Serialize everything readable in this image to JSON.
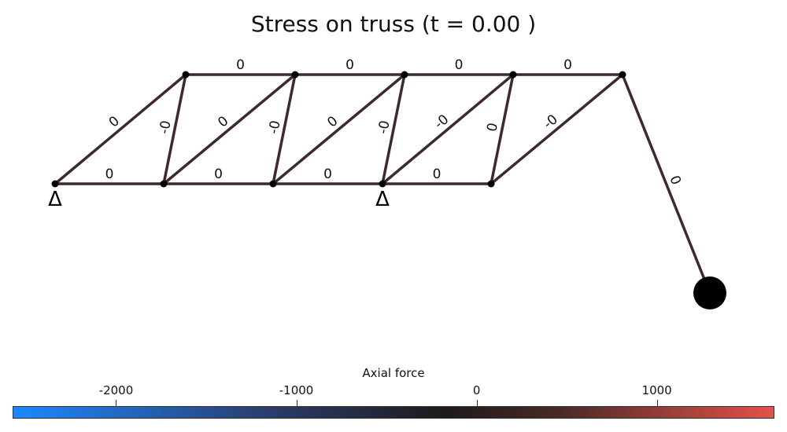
{
  "title": "Stress on truss (t = 0.00 )",
  "members": [
    {
      "label": "0"
    },
    {
      "label": "0"
    },
    {
      "label": "0"
    },
    {
      "label": "0"
    },
    {
      "label": "0"
    },
    {
      "label": "0"
    },
    {
      "label": "0"
    },
    {
      "label": "0"
    },
    {
      "label": "0"
    },
    {
      "label": "-0"
    },
    {
      "label": "0"
    },
    {
      "label": "-0"
    },
    {
      "label": "0"
    },
    {
      "label": "-0"
    },
    {
      "label": "-0"
    },
    {
      "label": "0"
    },
    {
      "label": "-0"
    },
    {
      "label": "0"
    }
  ],
  "supports": [
    {
      "symbol": "Δ"
    },
    {
      "symbol": "Δ"
    }
  ],
  "member_color": "#3e2a2a",
  "colorbar": {
    "label": "Axial force",
    "range": [
      -2574,
      1652
    ],
    "ticks": [
      {
        "value": -2000,
        "label": "-2000"
      },
      {
        "value": -1000,
        "label": "-1000"
      },
      {
        "value": 0,
        "label": "0"
      },
      {
        "value": 1000,
        "label": "1000"
      }
    ],
    "colors": [
      "#1e88ff",
      "#2a3a66",
      "#1e1a1a",
      "#4a2a26",
      "#e4524a"
    ]
  }
}
